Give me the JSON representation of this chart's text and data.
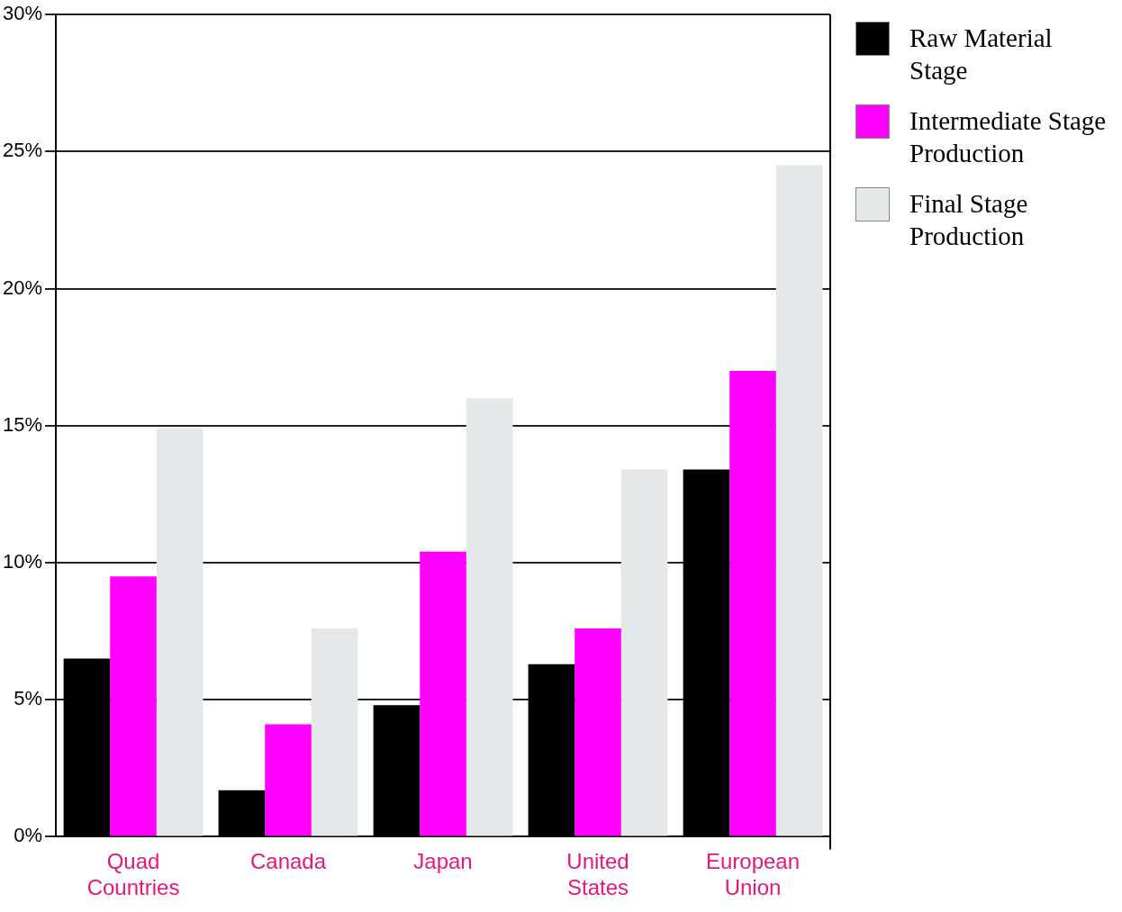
{
  "chart_data": {
    "type": "bar",
    "categories": [
      "Quad Countries",
      "Canada",
      "Japan",
      "United States",
      "European Union"
    ],
    "series": [
      {
        "name": "Raw Material Stage",
        "color": "#000000",
        "values": [
          6.5,
          1.7,
          4.8,
          6.3,
          13.4
        ]
      },
      {
        "name": "Intermediate Stage Production",
        "color": "#ff00ff",
        "values": [
          9.5,
          4.1,
          10.4,
          7.6,
          17.0
        ]
      },
      {
        "name": "Final Stage Production",
        "color": "#e4e8e8",
        "values": [
          14.9,
          7.6,
          16.0,
          13.4,
          24.5
        ]
      }
    ],
    "ylim": [
      0,
      30
    ],
    "yticks": [
      {
        "value": 0,
        "label": "0%"
      },
      {
        "value": 5,
        "label": "5%"
      },
      {
        "value": 10,
        "label": "10%"
      },
      {
        "value": 15,
        "label": "15%"
      },
      {
        "value": 20,
        "label": "20%"
      },
      {
        "value": 25,
        "label": "25%"
      },
      {
        "value": 30,
        "label": "30%"
      }
    ],
    "grid": "y",
    "legend": "top right"
  }
}
